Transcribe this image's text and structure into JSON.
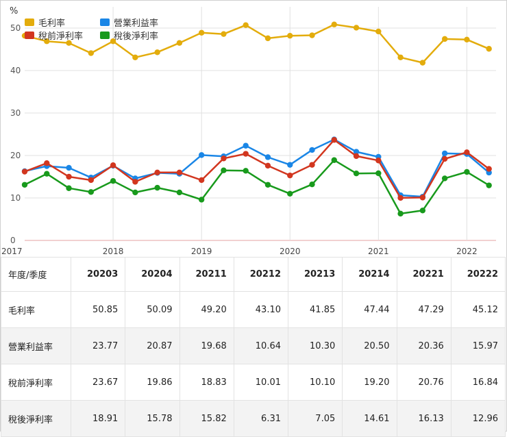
{
  "chart_data": {
    "type": "line",
    "ylabel": "%",
    "ylim": [
      0,
      55
    ],
    "yticks": [
      0,
      10,
      20,
      30,
      40,
      50
    ],
    "xlim": [
      2017,
      2022.33
    ],
    "xticks": [
      "2017",
      "2018",
      "2019",
      "2020",
      "2021",
      "2022"
    ],
    "x": [
      2017,
      2017.25,
      2017.5,
      2017.75,
      2018,
      2018.25,
      2018.5,
      2018.75,
      2019,
      2019.25,
      2019.5,
      2019.75,
      2020,
      2020.25,
      2020.5,
      2020.75,
      2021,
      2021.25,
      2021.5,
      2021.75,
      2022,
      2022.25
    ],
    "series": [
      {
        "name": "毛利率",
        "color": "#e3ac0c",
        "values": [
          48.2,
          46.9,
          46.5,
          44.1,
          46.9,
          43.1,
          44.3,
          46.5,
          48.9,
          48.6,
          50.7,
          47.6,
          48.2,
          48.3,
          50.85,
          50.09,
          49.2,
          43.1,
          41.85,
          47.44,
          47.29,
          45.12
        ]
      },
      {
        "name": "營業利益率",
        "color": "#1a86e6",
        "values": [
          16.3,
          17.5,
          17.1,
          14.8,
          17.6,
          14.6,
          15.9,
          15.7,
          20.1,
          19.8,
          22.3,
          19.6,
          17.8,
          21.3,
          23.77,
          20.87,
          19.68,
          10.64,
          10.3,
          20.5,
          20.36,
          15.97
        ]
      },
      {
        "name": "稅前淨利率",
        "color": "#d2361f",
        "values": [
          16.2,
          18.2,
          15.0,
          14.2,
          17.7,
          13.8,
          16.0,
          16.0,
          14.2,
          19.3,
          20.4,
          17.6,
          15.3,
          17.8,
          23.67,
          19.86,
          18.83,
          10.01,
          10.1,
          19.2,
          20.76,
          16.84
        ]
      },
      {
        "name": "稅後淨利率",
        "color": "#189a1c",
        "values": [
          13.1,
          15.7,
          12.3,
          11.4,
          14.0,
          11.3,
          12.4,
          11.3,
          9.6,
          16.5,
          16.4,
          13.1,
          11.0,
          13.2,
          18.91,
          15.78,
          15.82,
          6.31,
          7.05,
          14.61,
          16.13,
          12.96
        ]
      }
    ]
  },
  "table": {
    "header_label": "年度/季度",
    "columns": [
      "20203",
      "20204",
      "20211",
      "20212",
      "20213",
      "20214",
      "20221",
      "20222"
    ],
    "rows": [
      {
        "label": "毛利率",
        "values": [
          "50.85",
          "50.09",
          "49.20",
          "43.10",
          "41.85",
          "47.44",
          "47.29",
          "45.12"
        ]
      },
      {
        "label": "營業利益率",
        "values": [
          "23.77",
          "20.87",
          "19.68",
          "10.64",
          "10.30",
          "20.50",
          "20.36",
          "15.97"
        ]
      },
      {
        "label": "稅前淨利率",
        "values": [
          "23.67",
          "19.86",
          "18.83",
          "10.01",
          "10.10",
          "19.20",
          "20.76",
          "16.84"
        ]
      },
      {
        "label": "稅後淨利率",
        "values": [
          "18.91",
          "15.78",
          "15.82",
          "6.31",
          "7.05",
          "14.61",
          "16.13",
          "12.96"
        ]
      }
    ]
  }
}
